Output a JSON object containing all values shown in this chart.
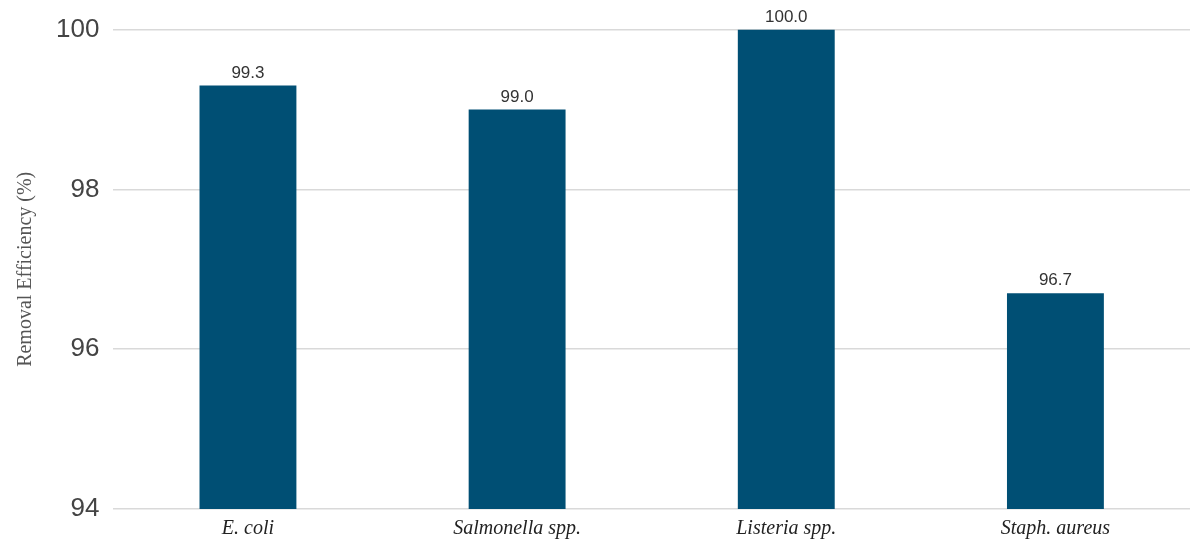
{
  "chart_data": {
    "type": "bar",
    "ylabel": "Removal Efficiency (%)",
    "categories": [
      "E. coli",
      "Salmonella spp.",
      "Listeria spp.",
      "Staph. aureus"
    ],
    "values": [
      99.3,
      99.0,
      100.0,
      96.7
    ],
    "value_labels": [
      "99.3",
      "99.0",
      "100.0",
      "96.7"
    ],
    "color": "#004f74",
    "ylim": [
      94,
      100
    ],
    "yticks": [
      94,
      96,
      98,
      100
    ],
    "grid": "y",
    "legend": false
  }
}
